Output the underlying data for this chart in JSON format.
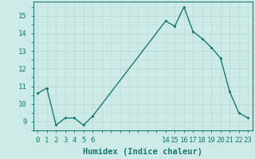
{
  "x": [
    0,
    1,
    2,
    3,
    4,
    5,
    6,
    14,
    15,
    16,
    17,
    18,
    19,
    20,
    21,
    22,
    23
  ],
  "y": [
    10.6,
    10.9,
    8.8,
    9.2,
    9.2,
    8.8,
    9.3,
    14.7,
    14.4,
    15.5,
    14.1,
    13.7,
    13.2,
    12.6,
    10.7,
    9.5,
    9.2
  ],
  "line_color": "#1a7a6e",
  "bg_color": "#cceae7",
  "grid_color": "#c0dbd8",
  "xlabel": "Humidex (Indice chaleur)",
  "xlim": [
    -0.5,
    23.5
  ],
  "ylim": [
    8.5,
    15.8
  ],
  "yticks": [
    9,
    10,
    11,
    12,
    13,
    14,
    15
  ],
  "xticks": [
    0,
    1,
    2,
    3,
    4,
    5,
    6,
    14,
    15,
    16,
    17,
    18,
    19,
    20,
    21,
    22,
    23
  ],
  "xlabel_fontsize": 7.5,
  "tick_fontsize": 6.5,
  "line_width": 1.0,
  "marker_size": 2.5
}
